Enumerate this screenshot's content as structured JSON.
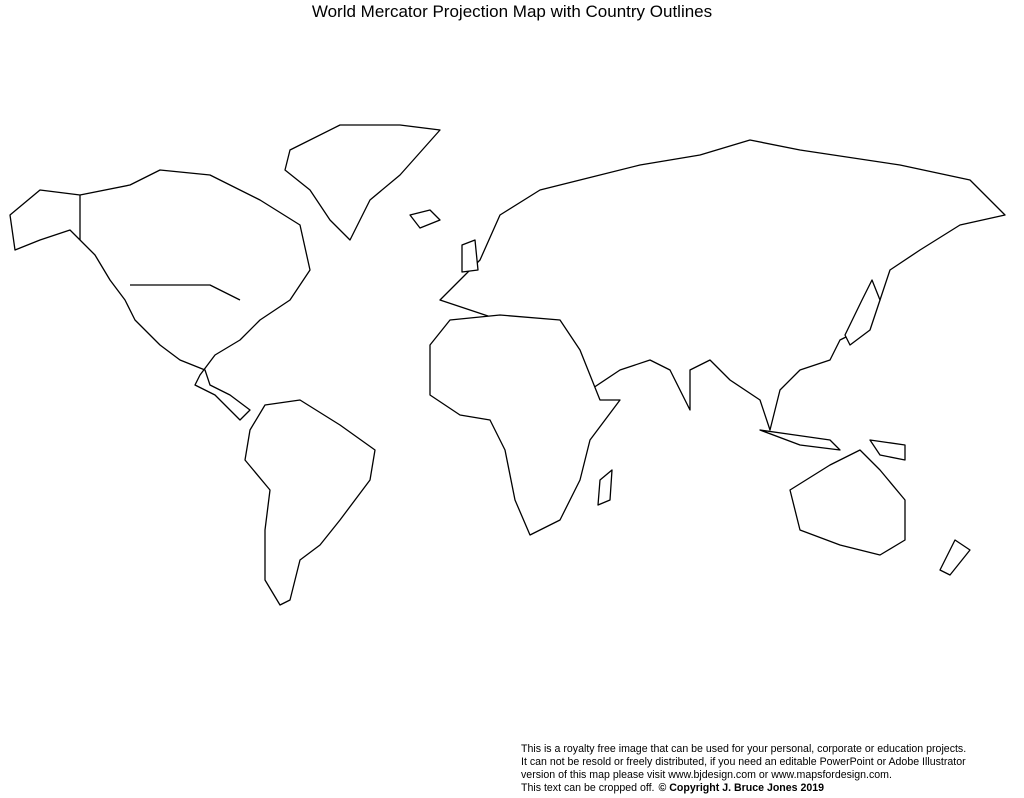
{
  "title": "World Mercator Projection Map with Country Outlines",
  "map": {
    "projection": "Mercator",
    "style": "black country outlines on white",
    "outline_color": "#000000",
    "fill_color": "#ffffff"
  },
  "notice": {
    "line1": "This is a royalty free image that can be used for your personal, corporate or education projects.",
    "line2": "It can not be resold or freely distributed, if you need an editable PowerPoint or Adobe Illustrator",
    "line3": "version of this map please visit www.bjdesign.com or www.mapsfordesign.com.",
    "line4": "This text can be cropped off.",
    "copyright": "© Copyright J. Bruce Jones 2019"
  }
}
